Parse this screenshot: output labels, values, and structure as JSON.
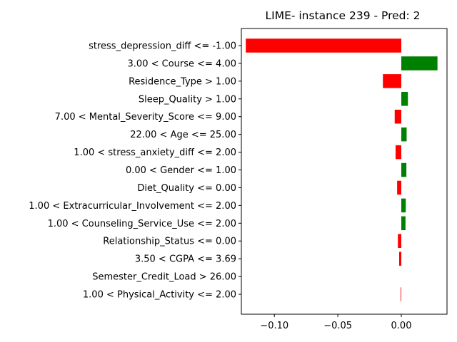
{
  "chart_data": {
    "type": "bar",
    "orientation": "horizontal",
    "title": "LIME- instance 239 - Pred: 2",
    "xlabel": "",
    "ylabel": "",
    "xlim": [
      -0.126,
      0.036
    ],
    "xticks": [
      -0.1,
      -0.05,
      0.0
    ],
    "xtick_labels": [
      "−0.10",
      "−0.05",
      "0.00"
    ],
    "grid": false,
    "legend": "none",
    "colors": {
      "positive": "#008000",
      "negative": "#ff0000"
    },
    "categories": [
      "stress_depression_diff <= -1.00",
      "3.00 < Course <= 4.00",
      "Residence_Type > 1.00",
      "Sleep_Quality > 1.00",
      "7.00 < Mental_Severity_Score <= 9.00",
      "22.00 < Age <= 25.00",
      "1.00 < stress_anxiety_diff <= 2.00",
      "0.00 < Gender <= 1.00",
      "Diet_Quality <= 0.00",
      "1.00 < Extracurricular_Involvement <= 2.00",
      "1.00 < Counseling_Service_Use <= 2.00",
      "Relationship_Status <= 0.00",
      "3.50 < CGPA <= 3.69",
      "Semester_Credit_Load > 26.00",
      "1.00 < Physical_Activity <= 2.00"
    ],
    "values": [
      -0.1225,
      0.0285,
      -0.0145,
      0.0052,
      -0.0052,
      0.0042,
      -0.0045,
      0.004,
      -0.0033,
      0.0035,
      0.0033,
      -0.0027,
      -0.0017,
      0.0,
      -0.0005
    ]
  }
}
